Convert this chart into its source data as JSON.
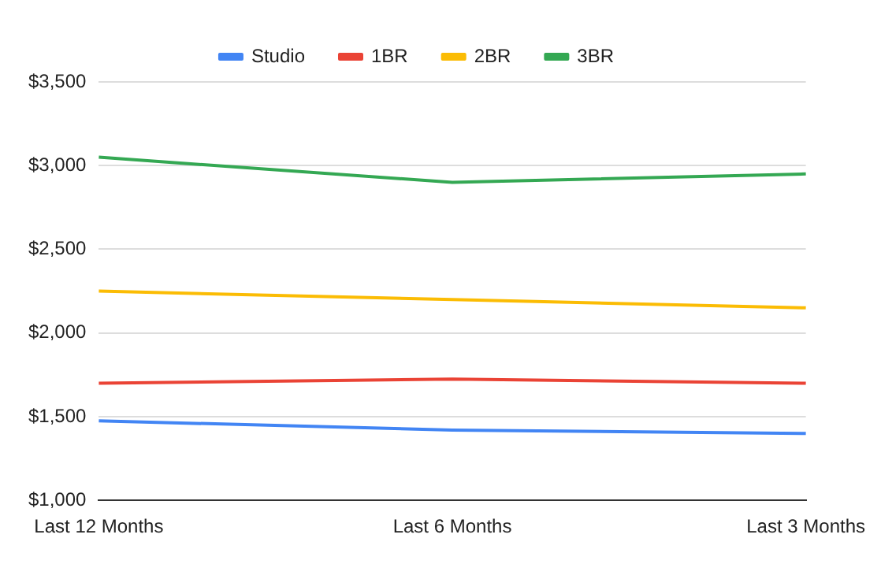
{
  "chart_data": {
    "type": "line",
    "categories": [
      "Last 12 Months",
      "Last 6 Months",
      "Last 3 Months"
    ],
    "series": [
      {
        "name": "Studio",
        "color": "#4285f4",
        "values": [
          1475,
          1420,
          1400
        ]
      },
      {
        "name": "1BR",
        "color": "#ea4335",
        "values": [
          1700,
          1725,
          1700
        ]
      },
      {
        "name": "2BR",
        "color": "#fbbc04",
        "values": [
          2250,
          2200,
          2150
        ]
      },
      {
        "name": "3BR",
        "color": "#34a853",
        "values": [
          3050,
          2900,
          2950
        ]
      }
    ],
    "ylim": [
      1000,
      3500
    ],
    "yticks": [
      {
        "value": 1000,
        "label": "$1,000"
      },
      {
        "value": 1500,
        "label": "$1,500"
      },
      {
        "value": 2000,
        "label": "$2,000"
      },
      {
        "value": 2500,
        "label": "$2,500"
      },
      {
        "value": 3000,
        "label": "$3,000"
      },
      {
        "value": 3500,
        "label": "$3,500"
      }
    ],
    "grid": "y",
    "legend": "top",
    "marker": "none",
    "line_style": "solid"
  }
}
